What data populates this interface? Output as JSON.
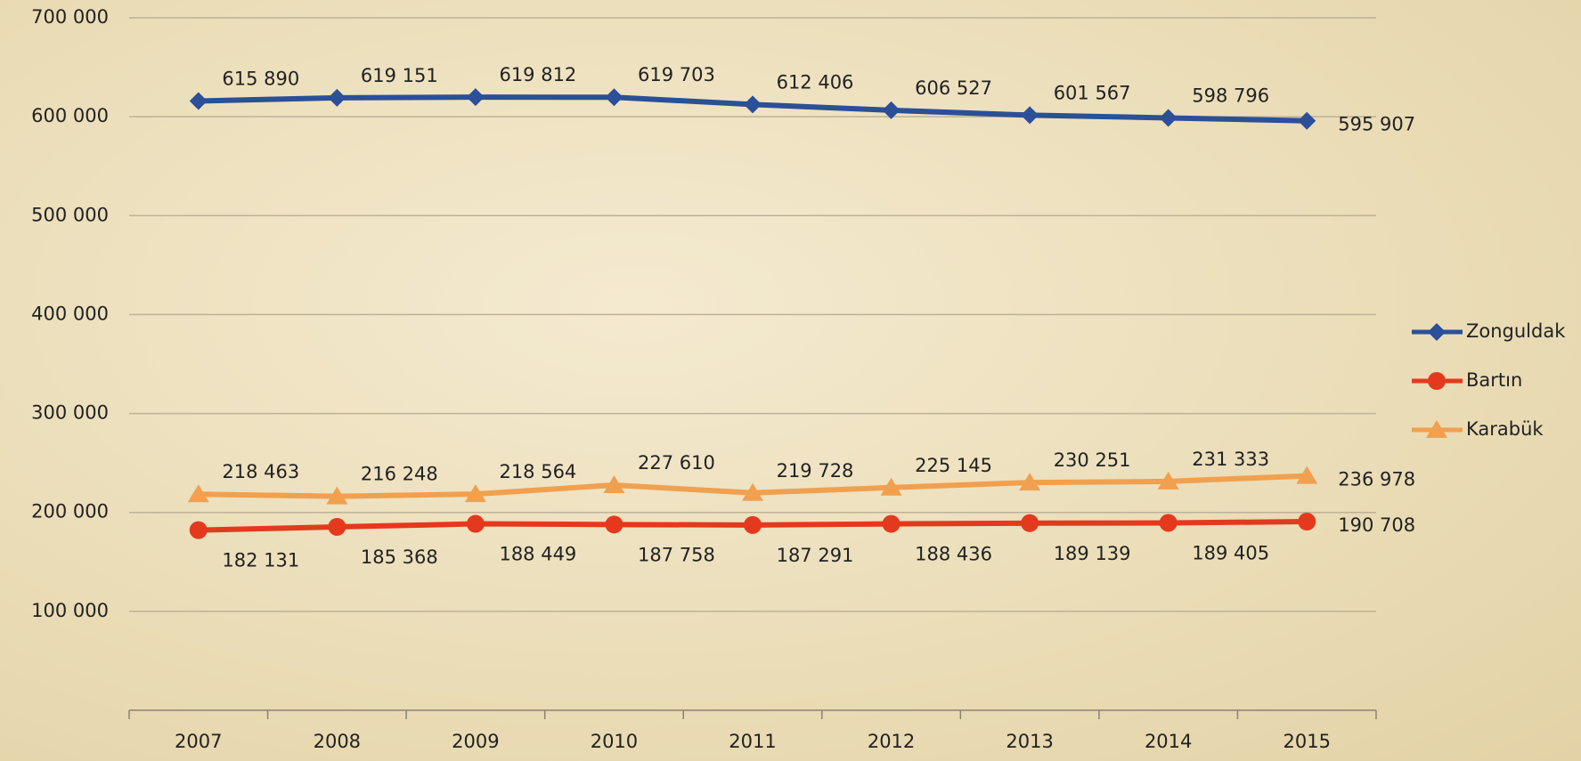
{
  "chart_data": {
    "type": "line",
    "categories": [
      "2007",
      "2008",
      "2009",
      "2010",
      "2011",
      "2012",
      "2013",
      "2014",
      "2015"
    ],
    "series": [
      {
        "name": "Zonguldak",
        "color": "#2b4f98",
        "marker": "diamond",
        "label_position": "above",
        "values": [
          615890,
          619151,
          619812,
          619703,
          612406,
          606527,
          601567,
          598796,
          595907
        ],
        "value_labels": [
          "615 890",
          "619 151",
          "619 812",
          "619 703",
          "612 406",
          "606 527",
          "601 567",
          "598 796",
          "595 907"
        ]
      },
      {
        "name": "Bartın",
        "color": "#e4391d",
        "marker": "circle",
        "label_position": "below",
        "values": [
          182131,
          185368,
          188449,
          187758,
          187291,
          188436,
          189139,
          189405,
          190708
        ],
        "value_labels": [
          "182 131",
          "185 368",
          "188 449",
          "187 758",
          "187 291",
          "188 436",
          "189 139",
          "189 405",
          "190 708"
        ]
      },
      {
        "name": "Karabük",
        "color": "#f0a04f",
        "marker": "triangle",
        "label_position": "above",
        "values": [
          218463,
          216248,
          218564,
          227610,
          219728,
          225145,
          230251,
          231333,
          236978
        ],
        "value_labels": [
          "218 463",
          "216 248",
          "218 564",
          "227 610",
          "219 728",
          "225 145",
          "230 251",
          "231 333",
          "236 978"
        ]
      }
    ],
    "ylim": [
      0,
      700000
    ],
    "yticks": [
      {
        "value": 100000,
        "label": "100 000"
      },
      {
        "value": 200000,
        "label": "200 000"
      },
      {
        "value": 300000,
        "label": "300 000"
      },
      {
        "value": 400000,
        "label": "400 000"
      },
      {
        "value": 500000,
        "label": "500 000"
      },
      {
        "value": 600000,
        "label": "600 000"
      },
      {
        "value": 700000,
        "label": "700 000"
      }
    ],
    "grid": true,
    "legend": "right"
  }
}
